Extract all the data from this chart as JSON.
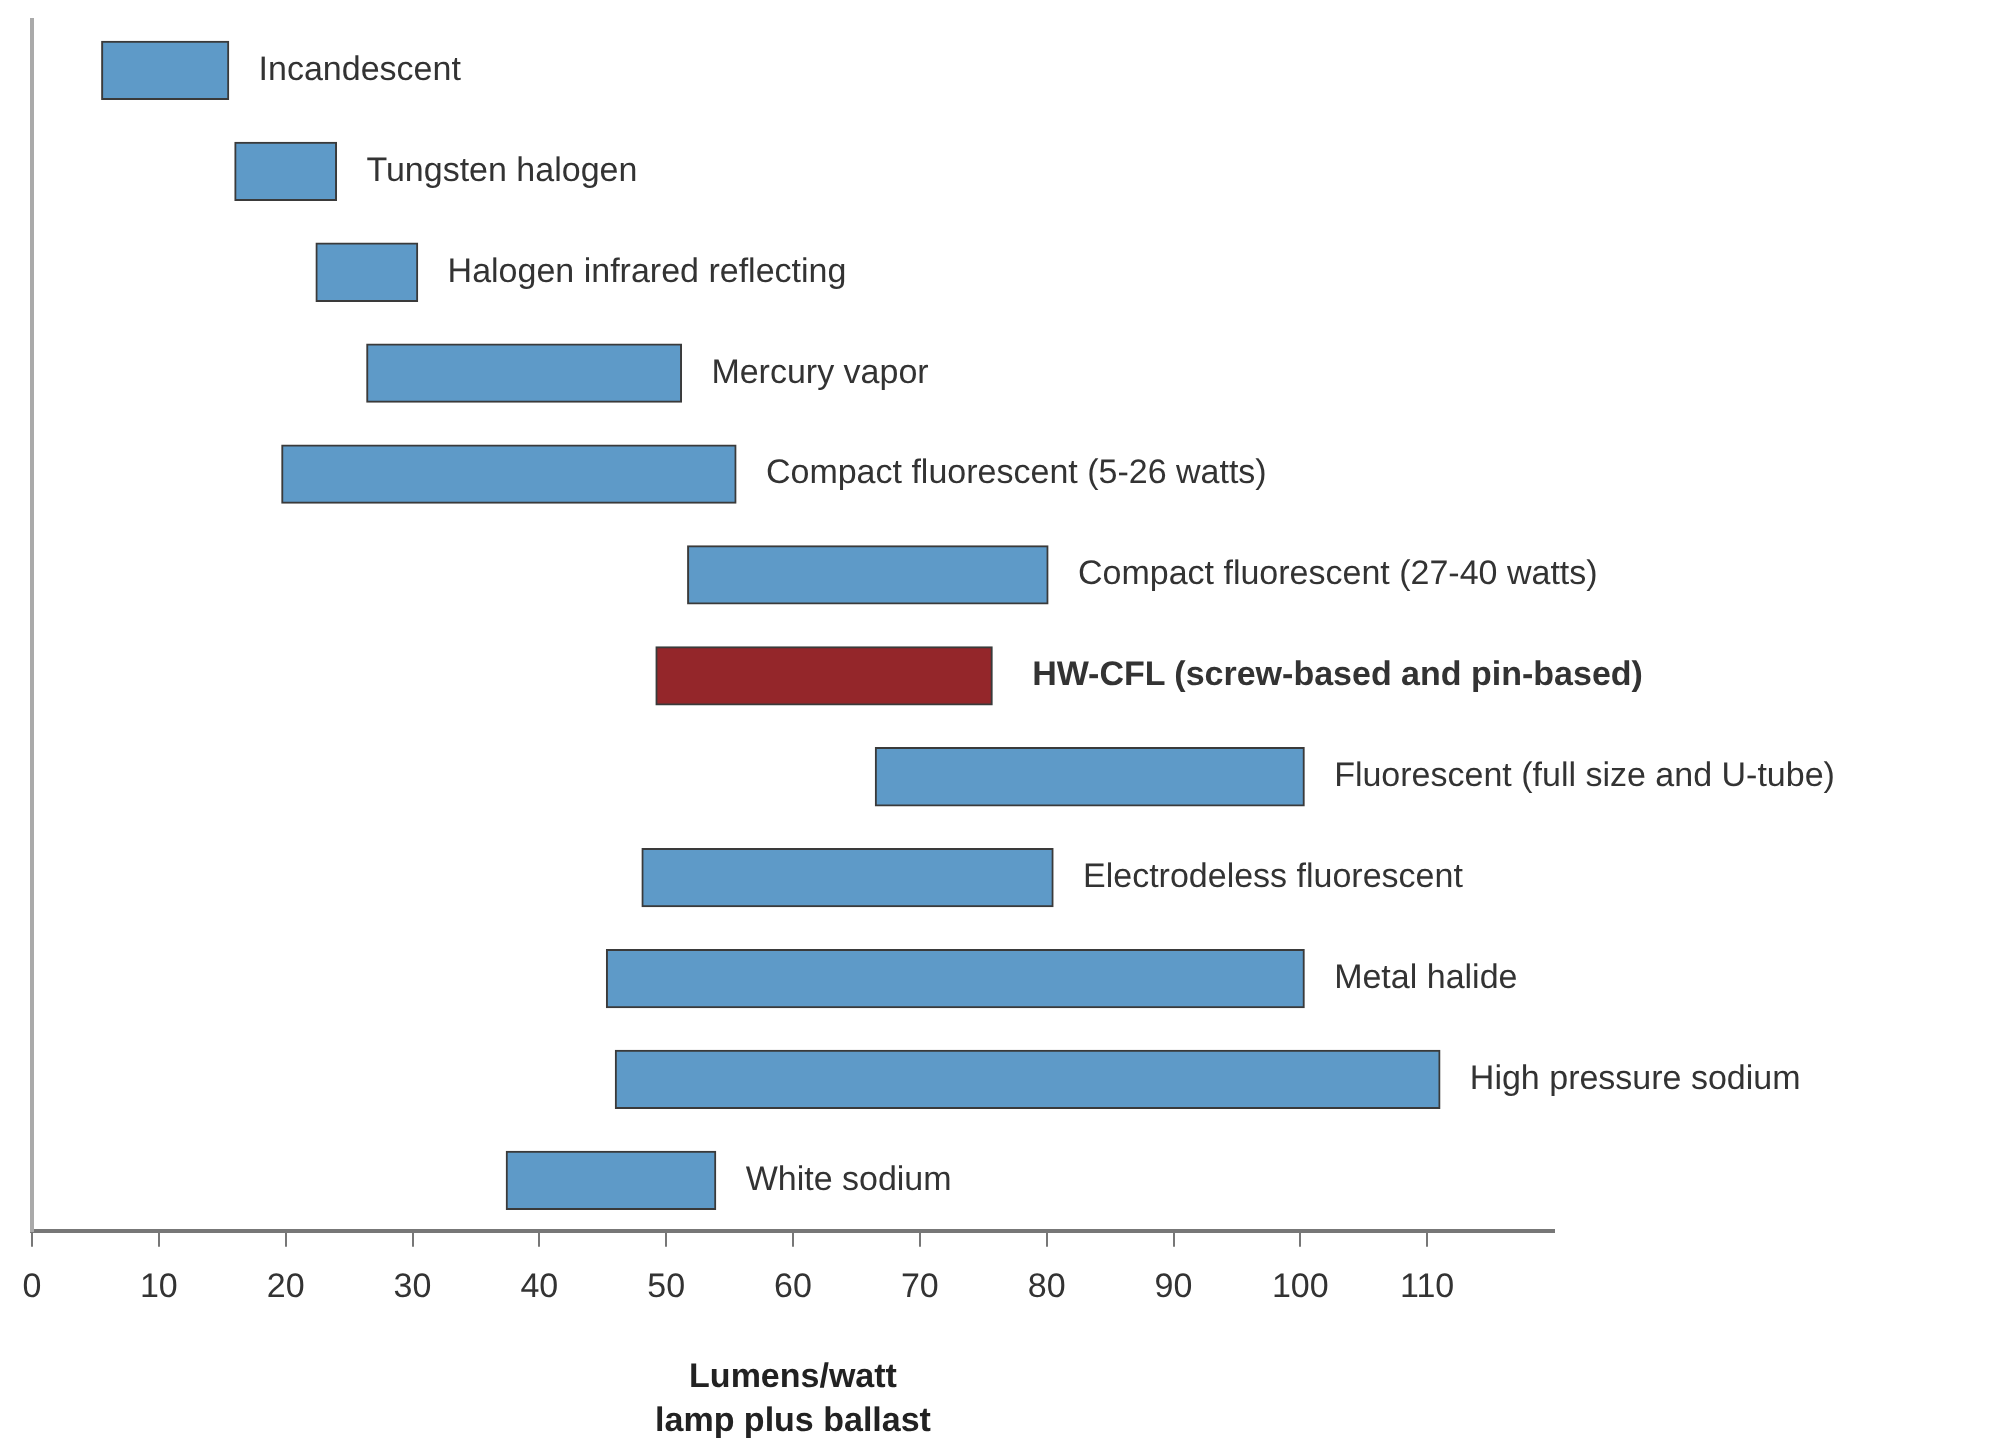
{
  "chart_data": {
    "type": "bar",
    "orientation": "horizontal",
    "xlabel": "Lumens/watt\nlamp plus ballast",
    "categories": [
      "Incandescent",
      "Tungsten halogen",
      "Halogen infrared reflecting",
      "Mercury vapor",
      "Compact fluorescent (5-26 watts)",
      "Compact fluorescent (27-40 watts)",
      "HW-CFL (screw-based and pin-based)",
      "Fluorescent (full size and U-tube)",
      "Electrodeless fluorescent",
      "Metal halide",
      "High pressure sodium",
      "White sodium"
    ],
    "base": [
      5.5,
      16,
      22.4,
      26.4,
      19.7,
      51.7,
      49.2,
      66.5,
      48.1,
      45.3,
      46,
      37.4
    ],
    "values": [
      10,
      8,
      8,
      24.8,
      35.8,
      28.4,
      26.5,
      33.8,
      32.4,
      55,
      65,
      16.5
    ],
    "colors": [
      "#5e9ac8",
      "#5e9ac8",
      "#5e9ac8",
      "#5e9ac8",
      "#5e9ac8",
      "#5e9ac8",
      "#94262a",
      "#5e9ac8",
      "#5e9ac8",
      "#5e9ac8",
      "#5e9ac8",
      "#5e9ac8"
    ],
    "xlim": [
      0,
      120
    ],
    "xticks": [
      0,
      10,
      20,
      30,
      40,
      50,
      60,
      70,
      80,
      90,
      100,
      110
    ],
    "tick_labels": "x",
    "grid": false,
    "legend": false
  }
}
